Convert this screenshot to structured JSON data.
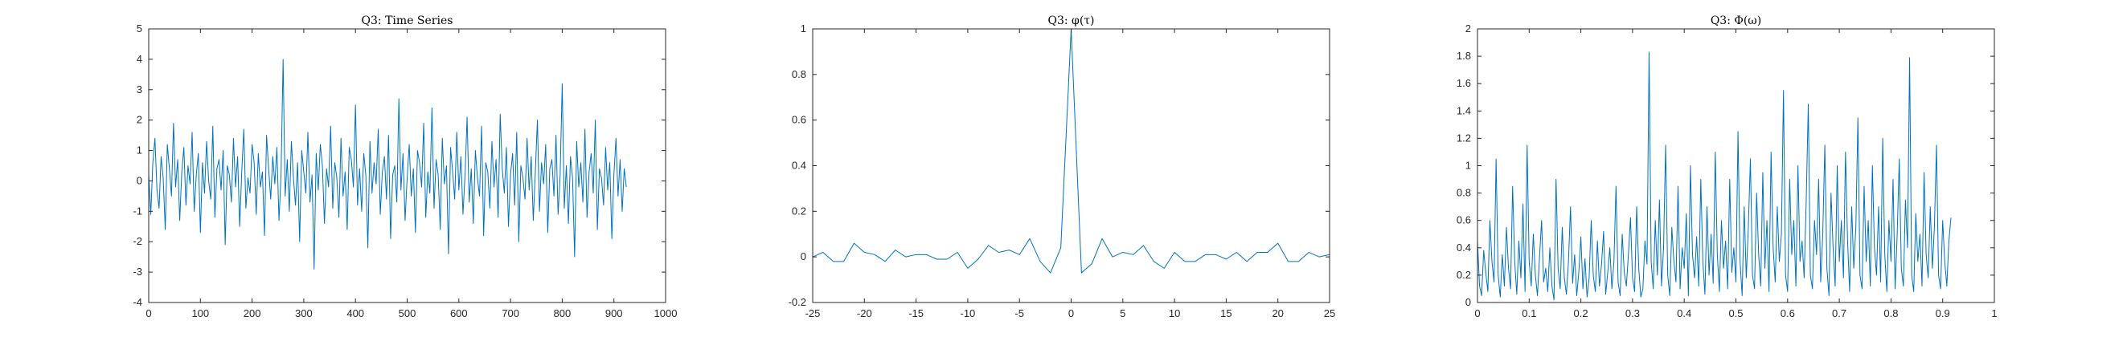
{
  "figure": {
    "background": "#ffffff",
    "axes_color": "#262626",
    "series_color": "#0072BD"
  },
  "chart_data": [
    {
      "type": "line",
      "title": "Q3: Time Series",
      "xlabel": "",
      "ylabel": "",
      "xlim": [
        0,
        1000
      ],
      "ylim": [
        -4,
        5
      ],
      "xticks": [
        0,
        100,
        200,
        300,
        400,
        500,
        600,
        700,
        800,
        900,
        1000
      ],
      "yticks": [
        -4,
        -3,
        -2,
        -1,
        0,
        1,
        2,
        3,
        4,
        5
      ],
      "grid": false,
      "legend": "none",
      "series": [
        {
          "x_start": 0,
          "x_step": 4,
          "values": [
            0.2,
            -1.1,
            0.6,
            1.4,
            -0.3,
            -0.9,
            0.8,
            0.1,
            -1.6,
            1.2,
            0.4,
            -0.5,
            1.9,
            -0.2,
            0.7,
            -1.3,
            0.3,
            1.1,
            -0.8,
            0.5,
            -0.1,
            1.6,
            -1.0,
            0.2,
            0.9,
            -1.7,
            0.6,
            -0.4,
            1.3,
            0.0,
            -0.6,
            1.8,
            -1.2,
            0.4,
            0.7,
            -0.3,
            1.0,
            -2.1,
            0.5,
            0.2,
            -0.7,
            1.4,
            -0.2,
            0.8,
            -1.5,
            0.3,
            1.7,
            -0.9,
            0.1,
            -0.4,
            1.2,
            0.6,
            -1.1,
            0.9,
            -0.2,
            0.3,
            -1.8,
            1.5,
            0.4,
            -0.6,
            0.8,
            -0.1,
            1.1,
            -1.3,
            0.2,
            4.0,
            -0.5,
            0.7,
            -1.0,
            1.3,
            0.1,
            -0.8,
            0.6,
            -2.0,
            1.0,
            0.3,
            -0.4,
            1.6,
            -0.7,
            0.2,
            -2.9,
            0.9,
            -0.3,
            1.2,
            0.5,
            -1.4,
            0.4,
            -0.2,
            1.8,
            -0.9,
            0.6,
            0.1,
            -1.2,
            1.4,
            -0.5,
            0.3,
            -1.6,
            1.1,
            0.7,
            -0.2,
            2.5,
            -0.8,
            0.4,
            -1.0,
            0.9,
            0.2,
            -2.2,
            1.3,
            -0.4,
            0.6,
            -0.1,
            1.7,
            -1.1,
            0.3,
            0.8,
            -0.6,
            1.5,
            -1.9,
            0.2,
            0.5,
            -0.7,
            2.7,
            -0.3,
            0.9,
            -1.3,
            0.1,
            1.2,
            -0.5,
            0.4,
            -1.7,
            1.0,
            0.6,
            -0.2,
            1.9,
            -1.2,
            0.3,
            -0.4,
            2.4,
            -0.9,
            0.7,
            0.2,
            -1.6,
            1.4,
            -0.1,
            0.5,
            -2.4,
            1.1,
            0.3,
            -0.6,
            1.6,
            -0.3,
            0.8,
            -1.1,
            0.2,
            2.1,
            -0.7,
            0.4,
            -1.4,
            1.0,
            0.1,
            -0.5,
            1.8,
            -1.8,
            0.6,
            0.3,
            -0.9,
            1.3,
            -0.2,
            0.7,
            -1.2,
            2.2,
            0.4,
            -0.4,
            1.1,
            -1.5,
            0.2,
            0.9,
            -0.8,
            1.6,
            -2.0,
            0.5,
            0.1,
            -0.6,
            1.4,
            -0.3,
            0.8,
            -1.3,
            0.3,
            2.0,
            -1.0,
            0.6,
            -0.1,
            1.2,
            -1.7,
            0.4,
            0.7,
            -0.5,
            1.5,
            -1.1,
            0.2,
            3.2,
            -0.9,
            0.5,
            -1.4,
            0.8,
            0.1,
            -2.5,
            1.3,
            -0.2,
            0.6,
            -0.7,
            1.7,
            -1.2,
            0.3,
            0.9,
            -0.4,
            2.0,
            -1.6,
            0.4,
            0.1,
            -0.8,
            1.1,
            -0.3,
            0.6,
            -1.9,
            0.2,
            1.4,
            -0.5,
            0.7,
            -1.0,
            0.4,
            -0.2
          ]
        }
      ]
    },
    {
      "type": "line",
      "title": "Q3: φ(τ)",
      "xlabel": "",
      "ylabel": "",
      "xlim": [
        -25,
        25
      ],
      "ylim": [
        -0.2,
        1
      ],
      "xticks": [
        -25,
        -20,
        -15,
        -10,
        -5,
        0,
        5,
        10,
        15,
        20,
        25
      ],
      "yticks": [
        -0.2,
        0,
        0.2,
        0.4,
        0.6,
        0.8,
        1
      ],
      "grid": false,
      "legend": "none",
      "series": [
        {
          "x": [
            -25,
            -24,
            -23,
            -22,
            -21,
            -20,
            -19,
            -18,
            -17,
            -16,
            -15,
            -14,
            -13,
            -12,
            -11,
            -10,
            -9,
            -8,
            -7,
            -6,
            -5,
            -4,
            -3,
            -2,
            -1,
            0,
            1,
            2,
            3,
            4,
            5,
            6,
            7,
            8,
            9,
            10,
            11,
            12,
            13,
            14,
            15,
            16,
            17,
            18,
            19,
            20,
            21,
            22,
            23,
            24,
            25
          ],
          "values": [
            0.0,
            0.02,
            -0.02,
            -0.02,
            0.06,
            0.02,
            0.01,
            -0.02,
            0.03,
            0.0,
            0.01,
            0.01,
            -0.01,
            -0.01,
            0.02,
            -0.05,
            -0.01,
            0.05,
            0.02,
            0.03,
            0.01,
            0.08,
            -0.02,
            -0.07,
            0.04,
            1.0,
            -0.07,
            -0.03,
            0.08,
            0.0,
            0.02,
            0.01,
            0.05,
            -0.02,
            -0.05,
            0.02,
            -0.02,
            -0.02,
            0.01,
            0.01,
            -0.01,
            0.02,
            -0.02,
            0.02,
            0.02,
            0.06,
            -0.02,
            -0.02,
            0.02,
            0.0,
            0.01
          ]
        }
      ]
    },
    {
      "type": "line",
      "title": "Q3: Φ(ω)",
      "xlabel": "",
      "ylabel": "",
      "xlim": [
        0,
        1
      ],
      "ylim": [
        0,
        2
      ],
      "xticks": [
        0,
        0.1,
        0.2,
        0.3,
        0.4,
        0.5,
        0.6,
        0.7,
        0.8,
        0.9,
        1
      ],
      "yticks": [
        0,
        0.2,
        0.4,
        0.6,
        0.8,
        1,
        1.2,
        1.4,
        1.6,
        1.8,
        2
      ],
      "grid": false,
      "legend": "none",
      "series": [
        {
          "x_start": 0,
          "x_step": 0.004,
          "values": [
            0.45,
            0.12,
            0.05,
            0.38,
            0.22,
            0.08,
            0.6,
            0.3,
            0.15,
            1.05,
            0.2,
            0.04,
            0.35,
            0.12,
            0.55,
            0.25,
            0.1,
            0.85,
            0.3,
            0.06,
            0.45,
            0.18,
            0.72,
            0.08,
            1.15,
            0.3,
            0.12,
            0.5,
            0.2,
            0.05,
            0.33,
            0.6,
            0.15,
            0.25,
            0.08,
            0.4,
            0.12,
            0.02,
            0.9,
            0.25,
            0.1,
            0.55,
            0.18,
            0.06,
            0.3,
            0.7,
            0.14,
            0.35,
            0.05,
            0.22,
            0.48,
            0.1,
            0.32,
            0.04,
            0.18,
            0.6,
            0.2,
            0.08,
            0.45,
            0.12,
            0.28,
            0.52,
            0.06,
            0.22,
            0.4,
            0.1,
            0.3,
            0.85,
            0.15,
            0.05,
            0.5,
            0.22,
            0.12,
            0.35,
            0.62,
            0.18,
            0.08,
            0.7,
            0.25,
            0.04,
            0.1,
            0.45,
            0.28,
            1.83,
            0.3,
            0.1,
            0.6,
            0.2,
            0.75,
            0.12,
            0.4,
            1.15,
            0.2,
            0.05,
            0.55,
            0.3,
            0.15,
            0.85,
            0.1,
            0.4,
            0.25,
            0.65,
            0.05,
            1.0,
            0.35,
            0.18,
            0.48,
            0.12,
            0.9,
            0.3,
            0.06,
            0.7,
            0.2,
            0.5,
            0.14,
            1.1,
            0.35,
            0.08,
            0.6,
            0.25,
            0.45,
            0.1,
            0.9,
            0.22,
            0.4,
            0.15,
            1.25,
            0.3,
            0.05,
            0.7,
            0.18,
            0.55,
            1.05,
            0.2,
            0.1,
            0.8,
            0.35,
            0.12,
            0.95,
            0.25,
            0.6,
            0.08,
            1.1,
            0.4,
            0.15,
            0.7,
            0.3,
            0.5,
            1.55,
            0.2,
            0.08,
            0.9,
            0.35,
            0.6,
            0.12,
            1.0,
            0.3,
            0.45,
            0.18,
            0.75,
            1.45,
            0.2,
            0.1,
            0.6,
            0.35,
            0.9,
            0.15,
            0.5,
            1.15,
            0.25,
            0.05,
            0.8,
            0.4,
            0.12,
            1.0,
            0.3,
            0.6,
            0.18,
            1.1,
            0.45,
            0.08,
            0.7,
            0.25,
            0.55,
            1.35,
            0.2,
            0.1,
            0.85,
            0.3,
            0.6,
            0.12,
            1.0,
            0.4,
            0.2,
            0.7,
            0.15,
            1.2,
            0.35,
            0.08,
            0.6,
            0.3,
            0.9,
            0.1,
            0.5,
            1.05,
            0.25,
            0.12,
            0.75,
            0.4,
            1.79,
            0.2,
            0.08,
            0.65,
            0.3,
            0.5,
            0.12,
            0.95,
            0.35,
            0.18,
            0.7,
            0.25,
            0.55,
            1.15,
            0.2,
            0.1,
            0.6,
            0.3,
            0.12,
            0.45,
            0.62
          ]
        }
      ]
    }
  ]
}
